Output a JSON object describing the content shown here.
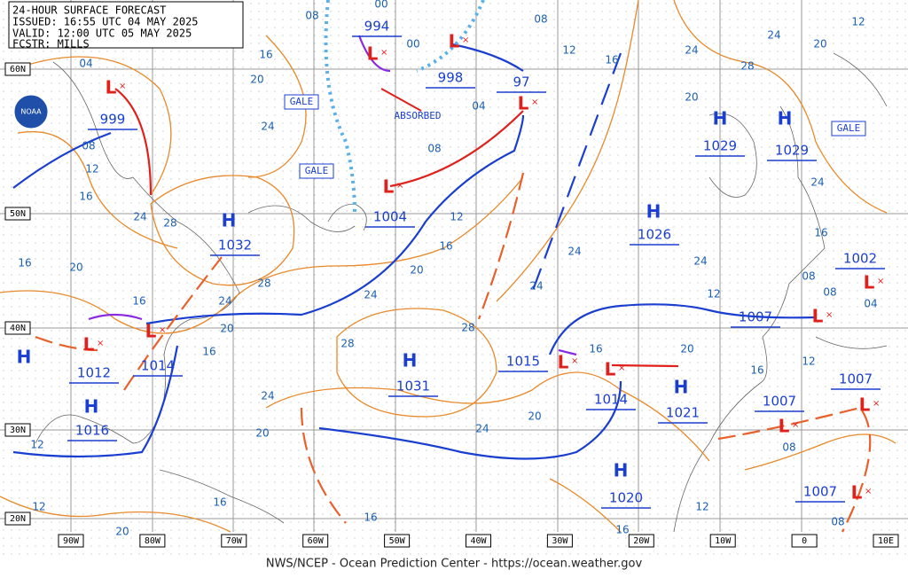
{
  "header": {
    "title": "24-HOUR SURFACE FORECAST",
    "issued": "ISSUED: 16:55 UTC 04 MAY 2025",
    "valid": "VALID:  12:00 UTC 05 MAY 2025",
    "forecaster": "FCSTR:  MILLS"
  },
  "logo": "NOAA",
  "footer": "NWS/NCEP - Ocean Prediction Center - https://ocean.weather.gov",
  "latitude_labels": [
    "60N",
    "50N",
    "40N",
    "30N",
    "20N"
  ],
  "longitude_labels": [
    "90W",
    "80W",
    "70W",
    "60W",
    "50W",
    "40W",
    "30W",
    "20W",
    "10W",
    "0",
    "10E"
  ],
  "annotations": [
    "GALE",
    "GALE",
    "GALE",
    "ABSORBED"
  ],
  "pressure_centers": [
    {
      "type": "H",
      "value": 1032
    },
    {
      "type": "H",
      "value": 1029
    },
    {
      "type": "H",
      "value": 1029
    },
    {
      "type": "H",
      "value": 1026
    },
    {
      "type": "H",
      "value": 1031
    },
    {
      "type": "H",
      "value": 1021
    },
    {
      "type": "H",
      "value": 1020
    },
    {
      "type": "H",
      "value": 1016
    },
    {
      "type": "H"
    },
    {
      "type": "L",
      "value": 999
    },
    {
      "type": "L",
      "value": 994
    },
    {
      "type": "L",
      "value": 998
    },
    {
      "type": "L",
      "value": "97"
    },
    {
      "type": "L",
      "value": 1004
    },
    {
      "type": "L",
      "value": 1012
    },
    {
      "type": "L",
      "value": 1014
    },
    {
      "type": "L",
      "value": 1015
    },
    {
      "type": "L",
      "value": 1014
    },
    {
      "type": "L",
      "value": 1007
    },
    {
      "type": "L",
      "value": 1002
    },
    {
      "type": "L",
      "value": 1007
    },
    {
      "type": "L",
      "value": 1007
    },
    {
      "type": "L",
      "value": 1007
    }
  ],
  "isobar_labels": [
    "04",
    "08",
    "12",
    "16",
    "24",
    "28",
    "16",
    "20",
    "24",
    "16",
    "20",
    "16",
    "24",
    "28",
    "24",
    "20",
    "16",
    "24",
    "28",
    "20",
    "24",
    "16",
    "20",
    "12",
    "08",
    "16",
    "12",
    "08",
    "04",
    "12",
    "16",
    "24",
    "28",
    "24",
    "20",
    "20",
    "16",
    "24",
    "12",
    "16",
    "20",
    "24",
    "28",
    "24",
    "20",
    "08",
    "12",
    "16",
    "08",
    "04",
    "08",
    "12",
    "16",
    "20",
    "24",
    "12",
    "08",
    "16",
    "12",
    "00",
    "00",
    "08"
  ]
}
